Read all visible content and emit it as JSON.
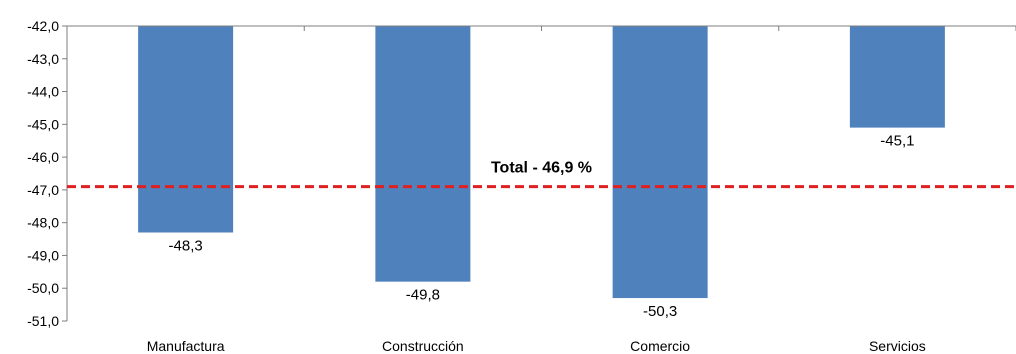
{
  "chart_data": {
    "type": "bar",
    "categories": [
      "Manufactura",
      "Construcción",
      "Comercio",
      "Servicios"
    ],
    "values": [
      -48.3,
      -49.8,
      -50.3,
      -45.1
    ],
    "value_labels": [
      "-48,3",
      "-49,8",
      "-50,3",
      "-45,1"
    ],
    "title": "",
    "xlabel": "",
    "ylabel": "",
    "ylim": [
      -51.0,
      -42.0
    ],
    "yticks": [
      -42.0,
      -43.0,
      -44.0,
      -45.0,
      -46.0,
      -47.0,
      -48.0,
      -49.0,
      -50.0,
      -51.0
    ],
    "ytick_labels": [
      "-42,0",
      "-43,0",
      "-44,0",
      "-45,0",
      "-46,0",
      "-47,0",
      "-48,0",
      "-49,0",
      "-50,0",
      "-51,0"
    ],
    "grid": false,
    "legend": "none",
    "bar_color": "#4F81BD",
    "reference_line": {
      "value": -46.9,
      "label": "Total - 46,9 %",
      "color": "#E02020",
      "style": "dashed"
    }
  }
}
